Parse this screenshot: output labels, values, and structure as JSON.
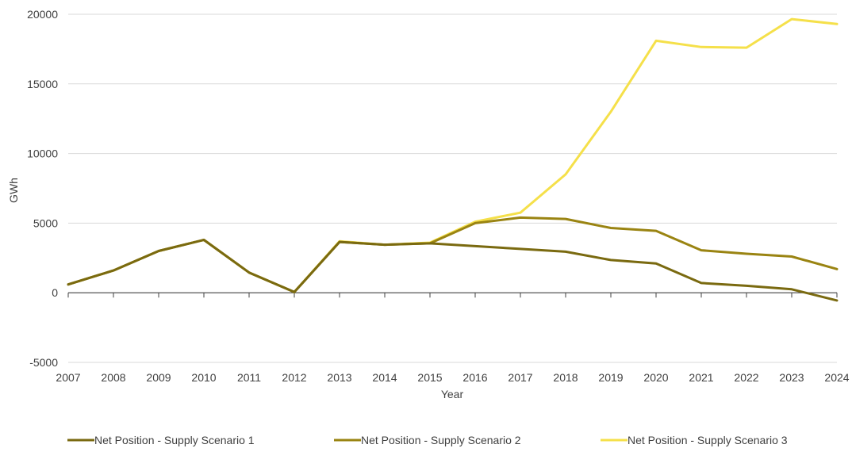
{
  "chart_data": {
    "type": "line",
    "title": "",
    "xlabel": "Year",
    "ylabel": "GWh",
    "ylim": [
      -5000,
      20000
    ],
    "yticks": [
      -5000,
      0,
      5000,
      10000,
      15000,
      20000
    ],
    "grid": true,
    "legend_position": "bottom",
    "x": [
      "2007",
      "2008",
      "2009",
      "2010",
      "2011",
      "2012",
      "2013",
      "2014",
      "2015",
      "2016",
      "2017",
      "2018",
      "2019",
      "2020",
      "2021",
      "2022",
      "2023",
      "2024"
    ],
    "series": [
      {
        "name": "Net Position - Supply Scenario 1",
        "color": "#7a6a10",
        "values": [
          600,
          1600,
          3000,
          3800,
          1450,
          50,
          3650,
          3450,
          3550,
          3350,
          3150,
          2950,
          2350,
          2100,
          700,
          500,
          250,
          -550
        ]
      },
      {
        "name": "Net Position - Supply Scenario 2",
        "color": "#9a8412",
        "values": [
          600,
          1600,
          3000,
          3800,
          1450,
          50,
          3650,
          3450,
          3550,
          5000,
          5400,
          5300,
          4650,
          4450,
          3050,
          2800,
          2600,
          1700
        ]
      },
      {
        "name": "Net Position - Supply Scenario 3",
        "color": "#f5e04a",
        "values": [
          600,
          1600,
          3000,
          3800,
          1450,
          50,
          3700,
          3450,
          3600,
          5100,
          5750,
          8500,
          13000,
          18100,
          17650,
          17600,
          19650,
          19300
        ]
      }
    ]
  }
}
